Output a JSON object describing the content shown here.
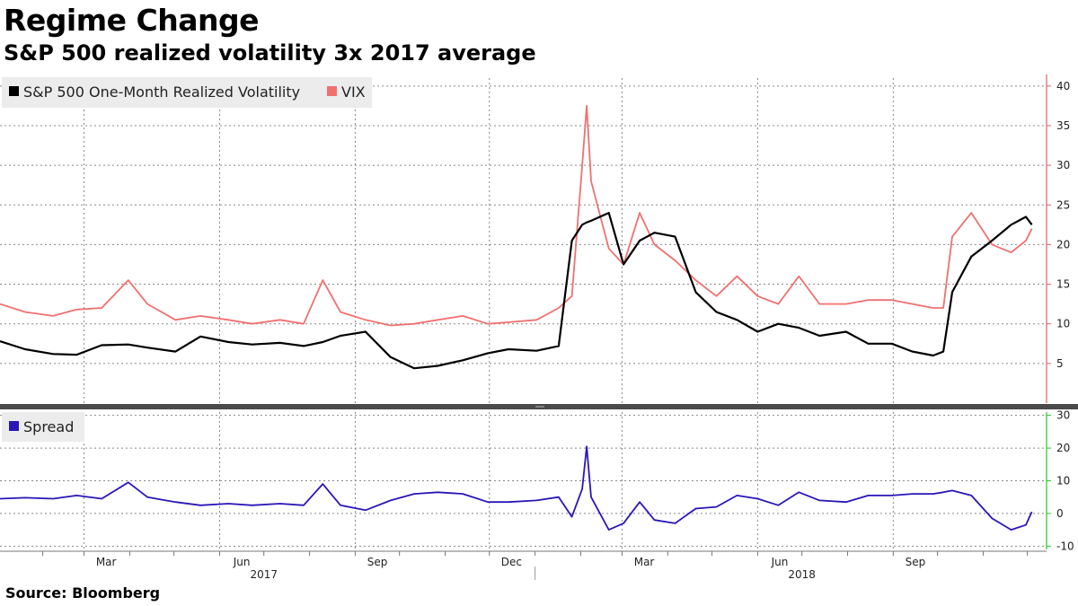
{
  "title": "Regime Change",
  "subtitle": "S&P 500 realized volatility 3x 2017 average",
  "source": "Source: Bloomberg",
  "chart_data": [
    {
      "type": "line",
      "title": "",
      "xlabel": "",
      "ylabel": "",
      "ylim": [
        0,
        41
      ],
      "yticks": [
        5,
        10,
        15,
        20,
        25,
        30,
        35,
        40
      ],
      "grid": true,
      "legend_position": "top-left",
      "x": [
        "2017-01-03",
        "2017-01-20",
        "2017-02-08",
        "2017-02-24",
        "2017-03-13",
        "2017-03-31",
        "2017-04-13",
        "2017-05-02",
        "2017-05-19",
        "2017-06-07",
        "2017-06-23",
        "2017-07-12",
        "2017-07-28",
        "2017-08-10",
        "2017-08-22",
        "2017-09-08",
        "2017-09-25",
        "2017-10-11",
        "2017-10-27",
        "2017-11-13",
        "2017-11-30",
        "2017-12-14",
        "2018-01-02",
        "2018-01-17",
        "2018-01-26",
        "2018-02-02",
        "2018-02-05",
        "2018-02-08",
        "2018-02-20",
        "2018-03-02",
        "2018-03-13",
        "2018-03-23",
        "2018-04-06",
        "2018-04-20",
        "2018-05-04",
        "2018-05-18",
        "2018-06-01",
        "2018-06-15",
        "2018-06-29",
        "2018-07-13",
        "2018-07-31",
        "2018-08-15",
        "2018-08-31",
        "2018-09-14",
        "2018-09-28",
        "2018-10-05",
        "2018-10-11",
        "2018-10-24",
        "2018-11-07",
        "2018-11-20",
        "2018-11-30",
        "2018-12-04"
      ],
      "series": [
        {
          "name": "S&P 500 One-Month Realized Volatility",
          "color": "#000000",
          "values": [
            7.8,
            6.8,
            6.2,
            6.1,
            7.3,
            7.4,
            7.0,
            6.5,
            8.4,
            7.7,
            7.4,
            7.6,
            7.2,
            7.7,
            8.5,
            9.0,
            5.8,
            4.4,
            4.7,
            5.4,
            6.3,
            6.8,
            6.6,
            7.2,
            20.5,
            22.5,
            22.8,
            23.0,
            24.0,
            17.5,
            20.5,
            21.5,
            21.0,
            14.0,
            11.5,
            10.5,
            9.0,
            10.0,
            9.5,
            8.5,
            9.0,
            7.5,
            7.5,
            6.5,
            6.0,
            6.5,
            14.0,
            18.5,
            20.5,
            22.5,
            23.5,
            22.5
          ]
        },
        {
          "name": "VIX",
          "color": "#f07070",
          "values": [
            12.5,
            11.5,
            11.0,
            11.8,
            12.0,
            15.5,
            12.5,
            10.5,
            11.0,
            10.5,
            10.0,
            10.5,
            10.0,
            15.5,
            11.5,
            10.5,
            9.8,
            10.0,
            10.5,
            11.0,
            10.0,
            10.2,
            10.5,
            12.0,
            13.5,
            30.0,
            37.5,
            28.0,
            19.5,
            17.5,
            24.0,
            20.0,
            18.0,
            15.5,
            13.5,
            16.0,
            13.5,
            12.5,
            16.0,
            12.5,
            12.5,
            13.0,
            13.0,
            12.5,
            12.0,
            12.0,
            21.0,
            24.0,
            20.0,
            19.0,
            20.5,
            22.0
          ]
        }
      ]
    },
    {
      "type": "line",
      "title": "",
      "xlabel": "",
      "ylabel": "",
      "ylim": [
        -11,
        31
      ],
      "yticks": [
        -10,
        0,
        10,
        20,
        30
      ],
      "grid": true,
      "legend_position": "top-left",
      "x_tick_labels": [
        "Mar",
        "Jun",
        "Sep",
        "Dec",
        "Mar",
        "Jun",
        "Sep"
      ],
      "x_year_labels": [
        "2017",
        "2018"
      ],
      "x": [
        "2017-01-03",
        "2017-01-20",
        "2017-02-08",
        "2017-02-24",
        "2017-03-13",
        "2017-03-31",
        "2017-04-13",
        "2017-05-02",
        "2017-05-19",
        "2017-06-07",
        "2017-06-23",
        "2017-07-12",
        "2017-07-28",
        "2017-08-10",
        "2017-08-22",
        "2017-09-08",
        "2017-09-25",
        "2017-10-11",
        "2017-10-27",
        "2017-11-13",
        "2017-11-30",
        "2017-12-14",
        "2018-01-02",
        "2018-01-17",
        "2018-01-26",
        "2018-02-02",
        "2018-02-05",
        "2018-02-08",
        "2018-02-20",
        "2018-03-02",
        "2018-03-13",
        "2018-03-23",
        "2018-04-06",
        "2018-04-20",
        "2018-05-04",
        "2018-05-18",
        "2018-06-01",
        "2018-06-15",
        "2018-06-29",
        "2018-07-13",
        "2018-07-31",
        "2018-08-15",
        "2018-08-31",
        "2018-09-14",
        "2018-09-28",
        "2018-10-05",
        "2018-10-11",
        "2018-10-24",
        "2018-11-07",
        "2018-11-20",
        "2018-11-30",
        "2018-12-04"
      ],
      "series": [
        {
          "name": "Spread",
          "color": "#2a16b8",
          "values": [
            4.5,
            4.8,
            4.5,
            5.5,
            4.5,
            9.5,
            5.0,
            3.5,
            2.5,
            3.0,
            2.5,
            3.0,
            2.5,
            9.0,
            2.5,
            1.0,
            4.0,
            6.0,
            6.5,
            6.0,
            3.5,
            3.5,
            4.0,
            5.0,
            -1.0,
            7.5,
            20.5,
            5.0,
            -5.0,
            -3.0,
            3.5,
            -2.0,
            -3.0,
            1.5,
            2.0,
            5.5,
            4.5,
            2.5,
            6.5,
            4.0,
            3.5,
            5.5,
            5.5,
            6.0,
            6.0,
            6.5,
            7.0,
            5.5,
            -1.5,
            -5.0,
            -3.5,
            0.5
          ]
        }
      ]
    }
  ]
}
